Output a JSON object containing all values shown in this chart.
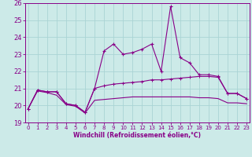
{
  "xlabel": "Windchill (Refroidissement éolien,°C)",
  "x_ticks": [
    0,
    1,
    2,
    3,
    4,
    5,
    6,
    7,
    8,
    9,
    10,
    11,
    12,
    13,
    14,
    15,
    16,
    17,
    18,
    19,
    20,
    21,
    22,
    23
  ],
  "ylim": [
    19,
    26
  ],
  "yticks": [
    19,
    20,
    21,
    22,
    23,
    24,
    25,
    26
  ],
  "xlim": [
    -0.3,
    23.3
  ],
  "bg_color": "#cceae8",
  "line_color": "#880088",
  "grid_color": "#aad4d4",
  "series1_x": [
    0,
    1,
    2,
    3,
    4,
    5,
    6,
    7,
    8,
    9,
    10,
    11,
    12,
    13,
    14,
    15,
    16,
    17,
    18,
    19,
    20,
    21,
    22,
    23
  ],
  "series1_y": [
    19.8,
    20.9,
    20.8,
    20.8,
    20.1,
    20.0,
    19.6,
    21.0,
    23.2,
    23.6,
    23.0,
    23.1,
    23.3,
    23.6,
    22.0,
    25.8,
    22.8,
    22.5,
    21.8,
    21.8,
    21.7,
    20.7,
    20.7,
    20.4
  ],
  "series2_x": [
    0,
    1,
    2,
    3,
    4,
    5,
    6,
    7,
    8,
    9,
    10,
    11,
    12,
    13,
    14,
    15,
    16,
    17,
    18,
    19,
    20,
    21,
    22,
    23
  ],
  "series2_y": [
    19.8,
    20.9,
    20.8,
    20.8,
    20.1,
    20.0,
    19.6,
    21.0,
    21.15,
    21.25,
    21.3,
    21.35,
    21.4,
    21.5,
    21.5,
    21.55,
    21.6,
    21.65,
    21.7,
    21.7,
    21.65,
    20.7,
    20.7,
    20.4
  ],
  "series3_x": [
    0,
    1,
    2,
    3,
    4,
    5,
    6,
    7,
    8,
    9,
    10,
    11,
    12,
    13,
    14,
    15,
    16,
    17,
    18,
    19,
    20,
    21,
    22,
    23
  ],
  "series3_y": [
    19.8,
    20.85,
    20.75,
    20.6,
    20.05,
    19.95,
    19.55,
    20.3,
    20.35,
    20.4,
    20.45,
    20.5,
    20.5,
    20.5,
    20.5,
    20.5,
    20.5,
    20.5,
    20.45,
    20.45,
    20.4,
    20.15,
    20.15,
    20.1
  ]
}
